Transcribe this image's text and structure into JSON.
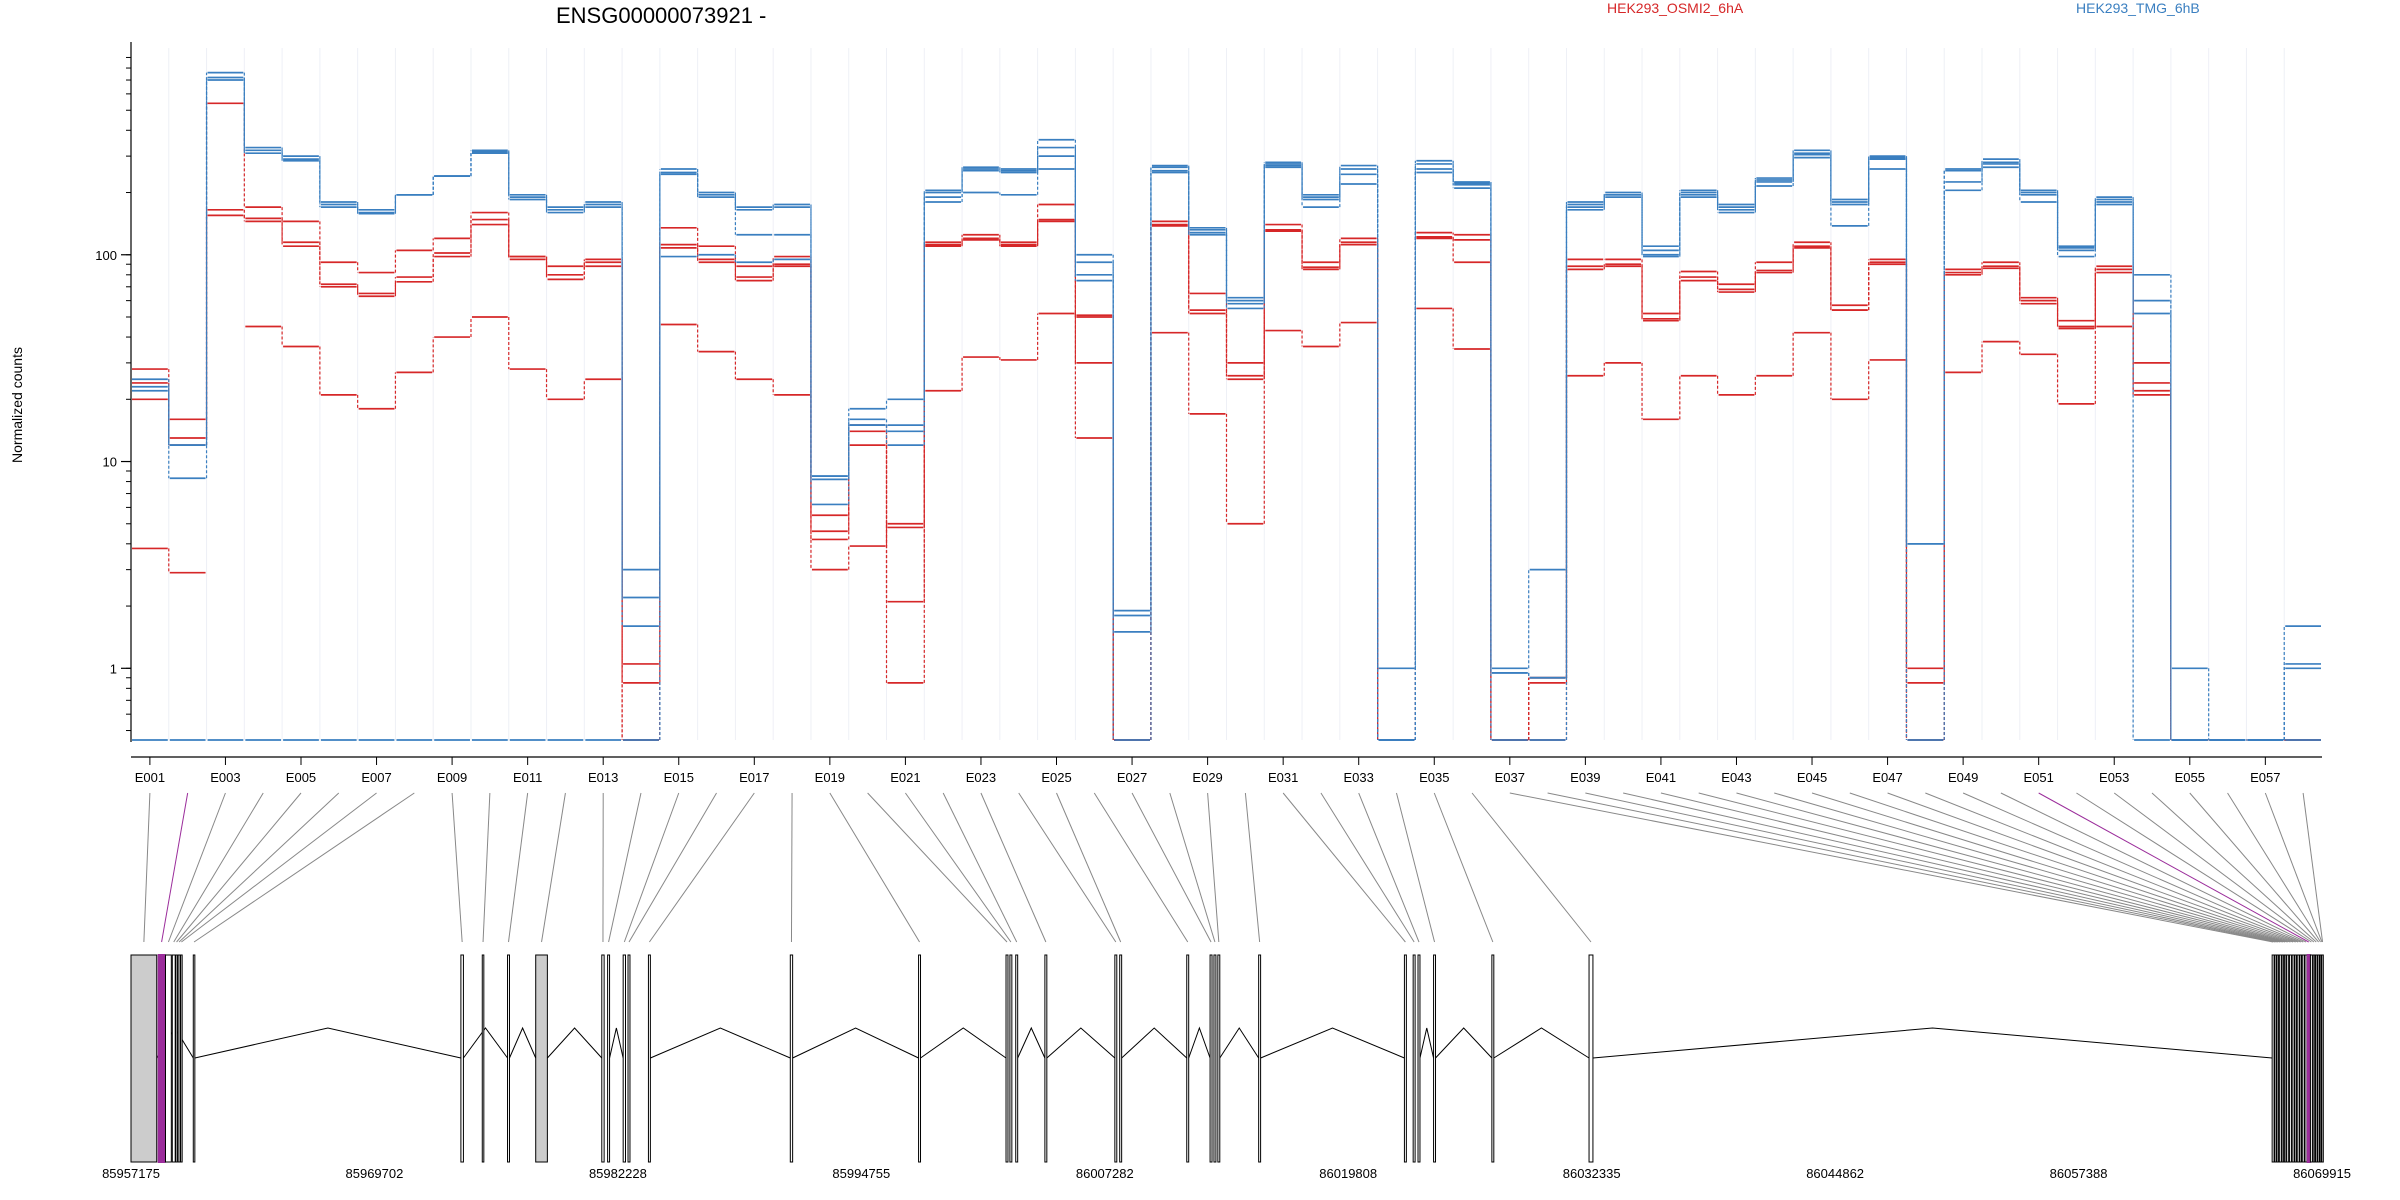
{
  "chart_data": {
    "type": "line",
    "title": "ENSG00000073921 -",
    "ylabel": "Normalized counts",
    "yscale": "log",
    "ylim": [
      0.45,
      1000
    ],
    "yticks": [
      "1",
      "10",
      "100"
    ],
    "exon_tick_labels": [
      "E001",
      "E003",
      "E005",
      "E007",
      "E009",
      "E011",
      "E013",
      "E015",
      "E017",
      "E019",
      "E021",
      "E023",
      "E025",
      "E027",
      "E029",
      "E031",
      "E033",
      "E035",
      "E037",
      "E039",
      "E041",
      "E043",
      "E045",
      "E047",
      "E049",
      "E051",
      "E053",
      "E055",
      "E057"
    ],
    "genomic_tick_labels": [
      "85957175",
      "85969702",
      "85982228",
      "85994755",
      "86007282",
      "86019808",
      "86032335",
      "86044862",
      "86057388",
      "86069915"
    ],
    "genomic_range": [
      85957175,
      86069915
    ],
    "grid": true,
    "legend_position": "top",
    "colors": {
      "HEK293_OSMI2_6hA": "#d62728",
      "HEK293_TMG_6hB": "#3a7fc0",
      "highlight": "#9b2d9b",
      "gene_model": "#000000"
    },
    "highlight_exons": [
      "E002",
      "E051"
    ],
    "exons": [
      "E001",
      "E002",
      "E003",
      "E004",
      "E005",
      "E006",
      "E007",
      "E008",
      "E009",
      "E010",
      "E011",
      "E012",
      "E013",
      "E014",
      "E015",
      "E016",
      "E017",
      "E018",
      "E019",
      "E020",
      "E021",
      "E022",
      "E023",
      "E024",
      "E025",
      "E026",
      "E027",
      "E028",
      "E029",
      "E030",
      "E031",
      "E032",
      "E033",
      "E034",
      "E035",
      "E036",
      "E037",
      "E038",
      "E039",
      "E040",
      "E041",
      "E042",
      "E043",
      "E044",
      "E045",
      "E046",
      "E047",
      "E048",
      "E049",
      "E050",
      "E051",
      "E052",
      "E053",
      "E054",
      "E055",
      "E056",
      "E057",
      "E058"
    ],
    "series": [
      {
        "name": "HEK293_OSMI2_6hA",
        "group": "OSMI2",
        "values": [
          28,
          16,
          540,
          170,
          145,
          92,
          82,
          105,
          120,
          160,
          98,
          88,
          95,
          0.45,
          135,
          110,
          88,
          98,
          5.5,
          14,
          4.8,
          115,
          125,
          115,
          175,
          50,
          0.45,
          145,
          65,
          30,
          140,
          92,
          120,
          0.45,
          128,
          125,
          0.45,
          0.9,
          95,
          95,
          52,
          83,
          72,
          92,
          115,
          57,
          95,
          0.45,
          85,
          92,
          62,
          48,
          88,
          30,
          0.45,
          0.45,
          0.45,
          0.45
        ]
      },
      {
        "name": "HEK293_OSMI2_6hA",
        "group": "OSMI2",
        "values": [
          24,
          13,
          165,
          150,
          115,
          72,
          65,
          78,
          102,
          148,
          98,
          80,
          92,
          1.05,
          112,
          95,
          78,
          90,
          4.6,
          12,
          2.1,
          112,
          120,
          112,
          148,
          30,
          0.45,
          140,
          54,
          26,
          132,
          87,
          115,
          0.45,
          122,
          118,
          0.45,
          0.9,
          88,
          90,
          49,
          78,
          68,
          84,
          110,
          54,
          92,
          1.0,
          82,
          88,
          60,
          45,
          85,
          24,
          0.45,
          0.45,
          0.45,
          0.45
        ]
      },
      {
        "name": "HEK293_OSMI2_6hA",
        "group": "OSMI2",
        "values": [
          20,
          12,
          155,
          145,
          110,
          70,
          63,
          74,
          98,
          140,
          95,
          76,
          88,
          0.85,
          108,
          92,
          75,
          88,
          4.2,
          15,
          0.85,
          110,
          118,
          110,
          145,
          13,
          0.45,
          138,
          52,
          25,
          130,
          85,
          112,
          0.45,
          120,
          92,
          0.45,
          0.85,
          85,
          88,
          48,
          75,
          66,
          82,
          108,
          54,
          90,
          0.85,
          80,
          86,
          58,
          44,
          82,
          22,
          0.45,
          0.45,
          0.45,
          0.45
        ]
      },
      {
        "name": "HEK293_OSMI2_6hA",
        "group": "OSMI2",
        "values": [
          3.8,
          2.9,
          0,
          45,
          36,
          21,
          18,
          27,
          40,
          50,
          28,
          20,
          25,
          0.45,
          46,
          34,
          25,
          21,
          3.0,
          3.9,
          5.0,
          22,
          32,
          31,
          52,
          51,
          0.45,
          42,
          17,
          5.0,
          43,
          36,
          47,
          0.45,
          55,
          35,
          0.45,
          0.45,
          26,
          30,
          16,
          26,
          21,
          26,
          42,
          20,
          31,
          0.45,
          27,
          38,
          33,
          19,
          45,
          21,
          0.45,
          0.45,
          0.45,
          0.45
        ]
      },
      {
        "name": "HEK293_TMG_6hB",
        "group": "TMG",
        "values": [
          25,
          12,
          760,
          330,
          300,
          180,
          165,
          195,
          240,
          320,
          195,
          170,
          180,
          3.0,
          260,
          200,
          170,
          175,
          8.5,
          18,
          20,
          205,
          265,
          260,
          360,
          100,
          1.9,
          270,
          135,
          62,
          280,
          195,
          270,
          1.0,
          285,
          225,
          1.0,
          3.0,
          180,
          200,
          110,
          205,
          175,
          235,
          320,
          185,
          300,
          4.0,
          260,
          290,
          205,
          110,
          190,
          80,
          1.0,
          0.45,
          0.45,
          1.6
        ]
      },
      {
        "name": "HEK293_TMG_6hB",
        "group": "TMG",
        "values": [
          23,
          12,
          720,
          320,
          290,
          175,
          160,
          195,
          240,
          315,
          190,
          165,
          175,
          2.2,
          250,
          195,
          165,
          170,
          8.2,
          16,
          14,
          200,
          260,
          255,
          330,
          92,
          1.8,
          265,
          132,
          60,
          275,
          190,
          260,
          0.45,
          275,
          222,
          0.95,
          0.9,
          175,
          195,
          105,
          200,
          170,
          230,
          310,
          180,
          295,
          4.0,
          255,
          280,
          200,
          108,
          185,
          60,
          0.45,
          0.45,
          0.45,
          1.05
        ]
      },
      {
        "name": "HEK293_TMG_6hB",
        "group": "TMG",
        "values": [
          22,
          8.3,
          700,
          310,
          285,
          170,
          158,
          195,
          240,
          310,
          185,
          160,
          170,
          1.6,
          245,
          190,
          125,
          125,
          8.5,
          15,
          12,
          190,
          255,
          250,
          300,
          80,
          1.5,
          255,
          128,
          58,
          270,
          185,
          245,
          0.45,
          260,
          218,
          0.95,
          0.9,
          170,
          195,
          100,
          195,
          165,
          225,
          305,
          175,
          290,
          4.0,
          225,
          275,
          195,
          105,
          180,
          52,
          0.45,
          0.45,
          0.45,
          1.0
        ]
      },
      {
        "name": "HEK293_TMG_6hB",
        "group": "TMG",
        "values": [
          0.45,
          0.45,
          0.45,
          0.45,
          0.45,
          0.45,
          0.45,
          0.45,
          0.45,
          0.45,
          0.45,
          0.45,
          0.45,
          0.45,
          98,
          100,
          92,
          95,
          6.2,
          15,
          15,
          180,
          200,
          195,
          260,
          75,
          0.45,
          250,
          125,
          55,
          265,
          170,
          220,
          0.45,
          250,
          210,
          0.45,
          0.45,
          165,
          190,
          98,
          190,
          160,
          215,
          295,
          138,
          260,
          0.45,
          205,
          265,
          180,
          98,
          175,
          0.45,
          0.45,
          0.45,
          0.45,
          0.45
        ]
      }
    ]
  },
  "legend": {
    "osmi2_label": "HEK293_OSMI2_6hA",
    "tmg_label": "HEK293_TMG_6hB"
  }
}
